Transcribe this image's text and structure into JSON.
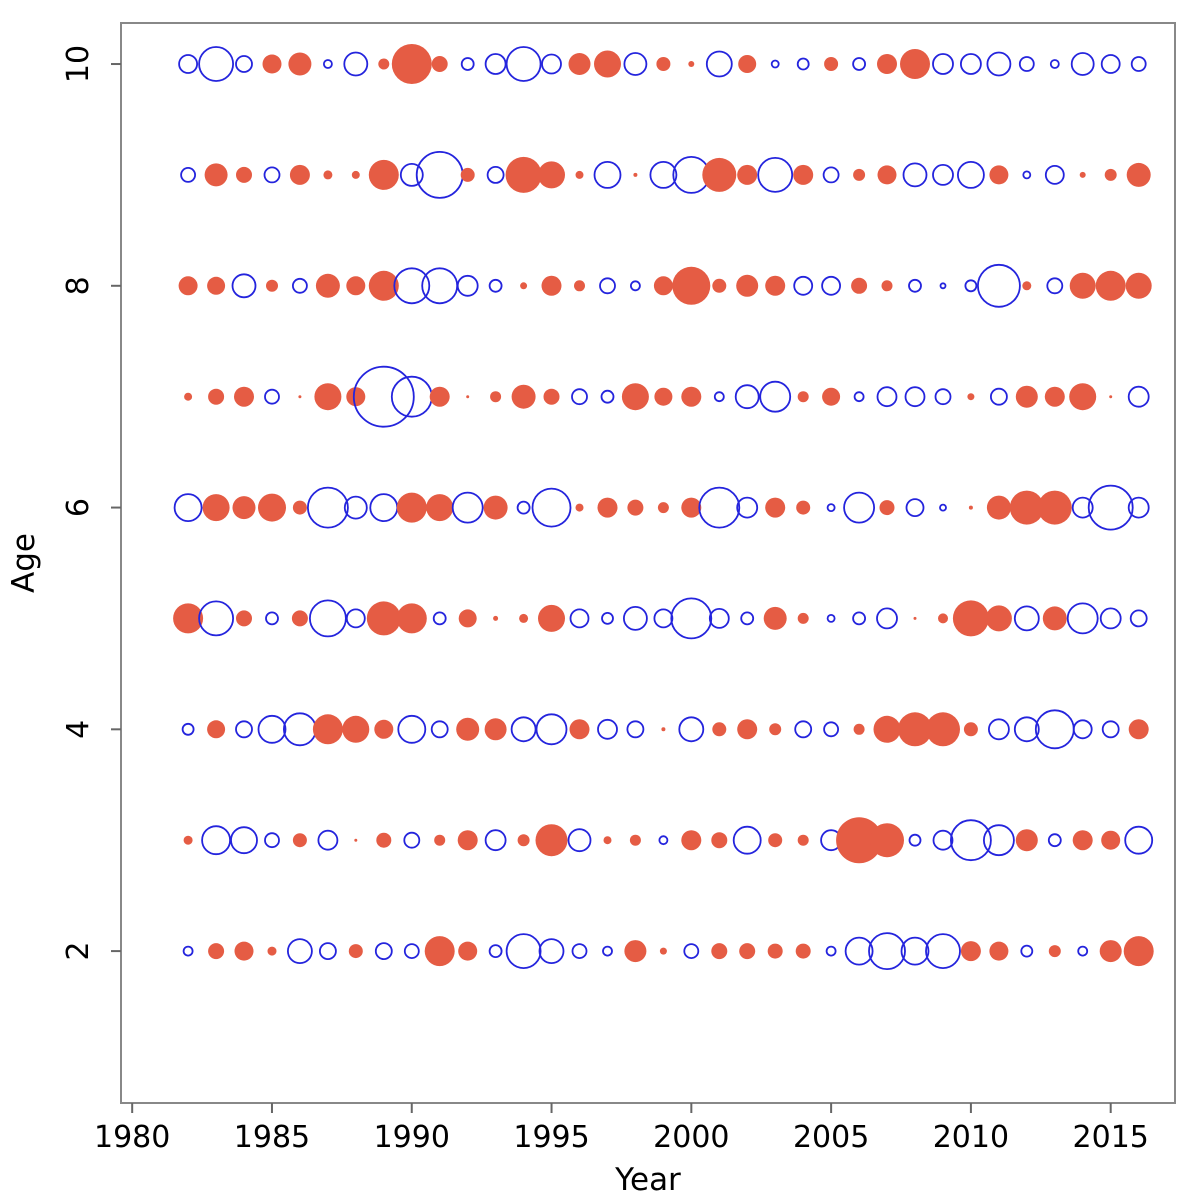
{
  "chart_data": {
    "type": "scatter",
    "subtype": "bubble-residual-plot",
    "title": "",
    "xlabel": "Year",
    "ylabel": "Age",
    "xlim": [
      1979.6,
      2017.3
    ],
    "ylim": [
      0.63,
      10.37
    ],
    "x_ticks": [
      1980,
      1985,
      1990,
      1995,
      2000,
      2005,
      2010,
      2015
    ],
    "y_ticks": [
      2,
      4,
      6,
      8,
      10
    ],
    "grid": false,
    "legend": "none",
    "frame_color": "#888888",
    "tick_color": "#666666",
    "positive_fill_color": "#e55c44",
    "negative_stroke_color": "#2424dd",
    "encoding": "Each bubble sits at (year, age). Signed radius in px (1200px image): positive = solid red-filled circle, negative = open blue-outlined circle; |value| is encoded by bubble radius.",
    "years": [
      1982,
      1983,
      1984,
      1985,
      1986,
      1987,
      1988,
      1989,
      1990,
      1991,
      1992,
      1993,
      1994,
      1995,
      1996,
      1997,
      1998,
      1999,
      2000,
      2001,
      2002,
      2003,
      2004,
      2005,
      2006,
      2007,
      2008,
      2009,
      2010,
      2011,
      2012,
      2013,
      2014,
      2015,
      2016
    ],
    "series": [
      {
        "age": 10,
        "signed_radius": [
          -9,
          -17,
          -8,
          9.5,
          11.5,
          -4,
          -11.5,
          5.5,
          20,
          8,
          -6,
          -10,
          -17,
          -9.5,
          11,
          13.5,
          -11,
          7,
          3,
          -12.5,
          9,
          -3.5,
          -5.5,
          7,
          -6,
          10,
          15,
          -10,
          -10,
          -11.5,
          -7,
          -4,
          -11,
          -9,
          -7
        ]
      },
      {
        "age": 9,
        "signed_radius": [
          -7,
          11.5,
          8,
          -7.5,
          10,
          4.5,
          4,
          15,
          -11,
          -23,
          7,
          -8,
          18,
          13.5,
          4,
          -13,
          2,
          -13,
          -18,
          17,
          10,
          -17,
          10,
          -7.5,
          6,
          9.5,
          -11.5,
          -10,
          -13,
          9.5,
          -3.5,
          -9,
          3,
          6,
          12
        ]
      },
      {
        "age": 8,
        "signed_radius": [
          9.5,
          9,
          -11.5,
          6,
          -7,
          12,
          9.5,
          15,
          -17.5,
          -17.5,
          -10,
          -6,
          3.5,
          10,
          5.5,
          -7.5,
          -4.5,
          9.5,
          19,
          7,
          11,
          10,
          -9,
          -9,
          8,
          5.5,
          -6,
          -2.5,
          -5.5,
          -21,
          4.5,
          -7.5,
          13,
          15,
          13
        ]
      },
      {
        "age": 7,
        "signed_radius": [
          4,
          8,
          10,
          -7,
          1.5,
          13.5,
          9.5,
          -30,
          -20,
          10,
          1.5,
          5.5,
          12,
          8,
          -7.5,
          -6,
          13.5,
          9,
          10,
          -4.5,
          -11.5,
          -15,
          5.5,
          9,
          -4.5,
          -9.5,
          -9.5,
          -7.5,
          3.5,
          -8,
          11,
          10,
          13.5,
          1.5,
          -10
        ]
      },
      {
        "age": 6,
        "signed_radius": [
          -13.5,
          13.5,
          11.5,
          14,
          7,
          -20,
          -11,
          -13.5,
          15,
          13.5,
          -15,
          12,
          -6,
          -19,
          4,
          10,
          8,
          5.5,
          10,
          -20,
          -10,
          10,
          7,
          -3.5,
          -15,
          7.5,
          -8.5,
          -3,
          2,
          12,
          17,
          17,
          -10,
          -22,
          -10
        ]
      },
      {
        "age": 5,
        "signed_radius": [
          15,
          -17,
          8,
          -6,
          8,
          -18,
          -9,
          17,
          15,
          -6,
          9,
          2.5,
          4.5,
          13.5,
          -9,
          -5.5,
          -11.5,
          -9,
          -20,
          -9.5,
          -6,
          11.5,
          5.5,
          -3.5,
          -6,
          -10,
          1.5,
          5,
          18,
          13,
          -12,
          12,
          -15,
          -10,
          -8
        ]
      },
      {
        "age": 4,
        "signed_radius": [
          -5.5,
          9,
          -8,
          -13.5,
          -16,
          15,
          13.5,
          9.5,
          -13.5,
          -8,
          11.5,
          11,
          -12,
          -15,
          10,
          -9.5,
          -8,
          2,
          -12,
          7,
          10,
          6,
          -8,
          -7,
          5.5,
          13.5,
          17,
          17,
          7,
          -10,
          -12,
          -19,
          -9,
          -8,
          10
        ]
      },
      {
        "age": 3,
        "signed_radius": [
          4.5,
          -14,
          -13,
          -7,
          7,
          -9.5,
          1.5,
          7.5,
          -7.5,
          5.5,
          10,
          -10,
          6,
          16,
          -11,
          4,
          5.5,
          -4,
          10,
          8,
          -13.5,
          7,
          5.5,
          -10,
          23,
          17,
          -5.5,
          -9.5,
          -20,
          -15,
          11,
          -6,
          10,
          9.5,
          -13.5
        ]
      },
      {
        "age": 2,
        "signed_radius": [
          -4.5,
          8,
          9.5,
          4.5,
          -12,
          -8,
          7,
          -8,
          -7,
          15,
          9.5,
          -6,
          -17,
          -12,
          -7,
          -4.5,
          11,
          3.5,
          -7,
          8,
          8,
          7.5,
          7.5,
          -4.5,
          -13.5,
          -18,
          -13.5,
          -17,
          10,
          9.5,
          -5.5,
          6,
          -4.5,
          11,
          15
        ]
      }
    ]
  }
}
